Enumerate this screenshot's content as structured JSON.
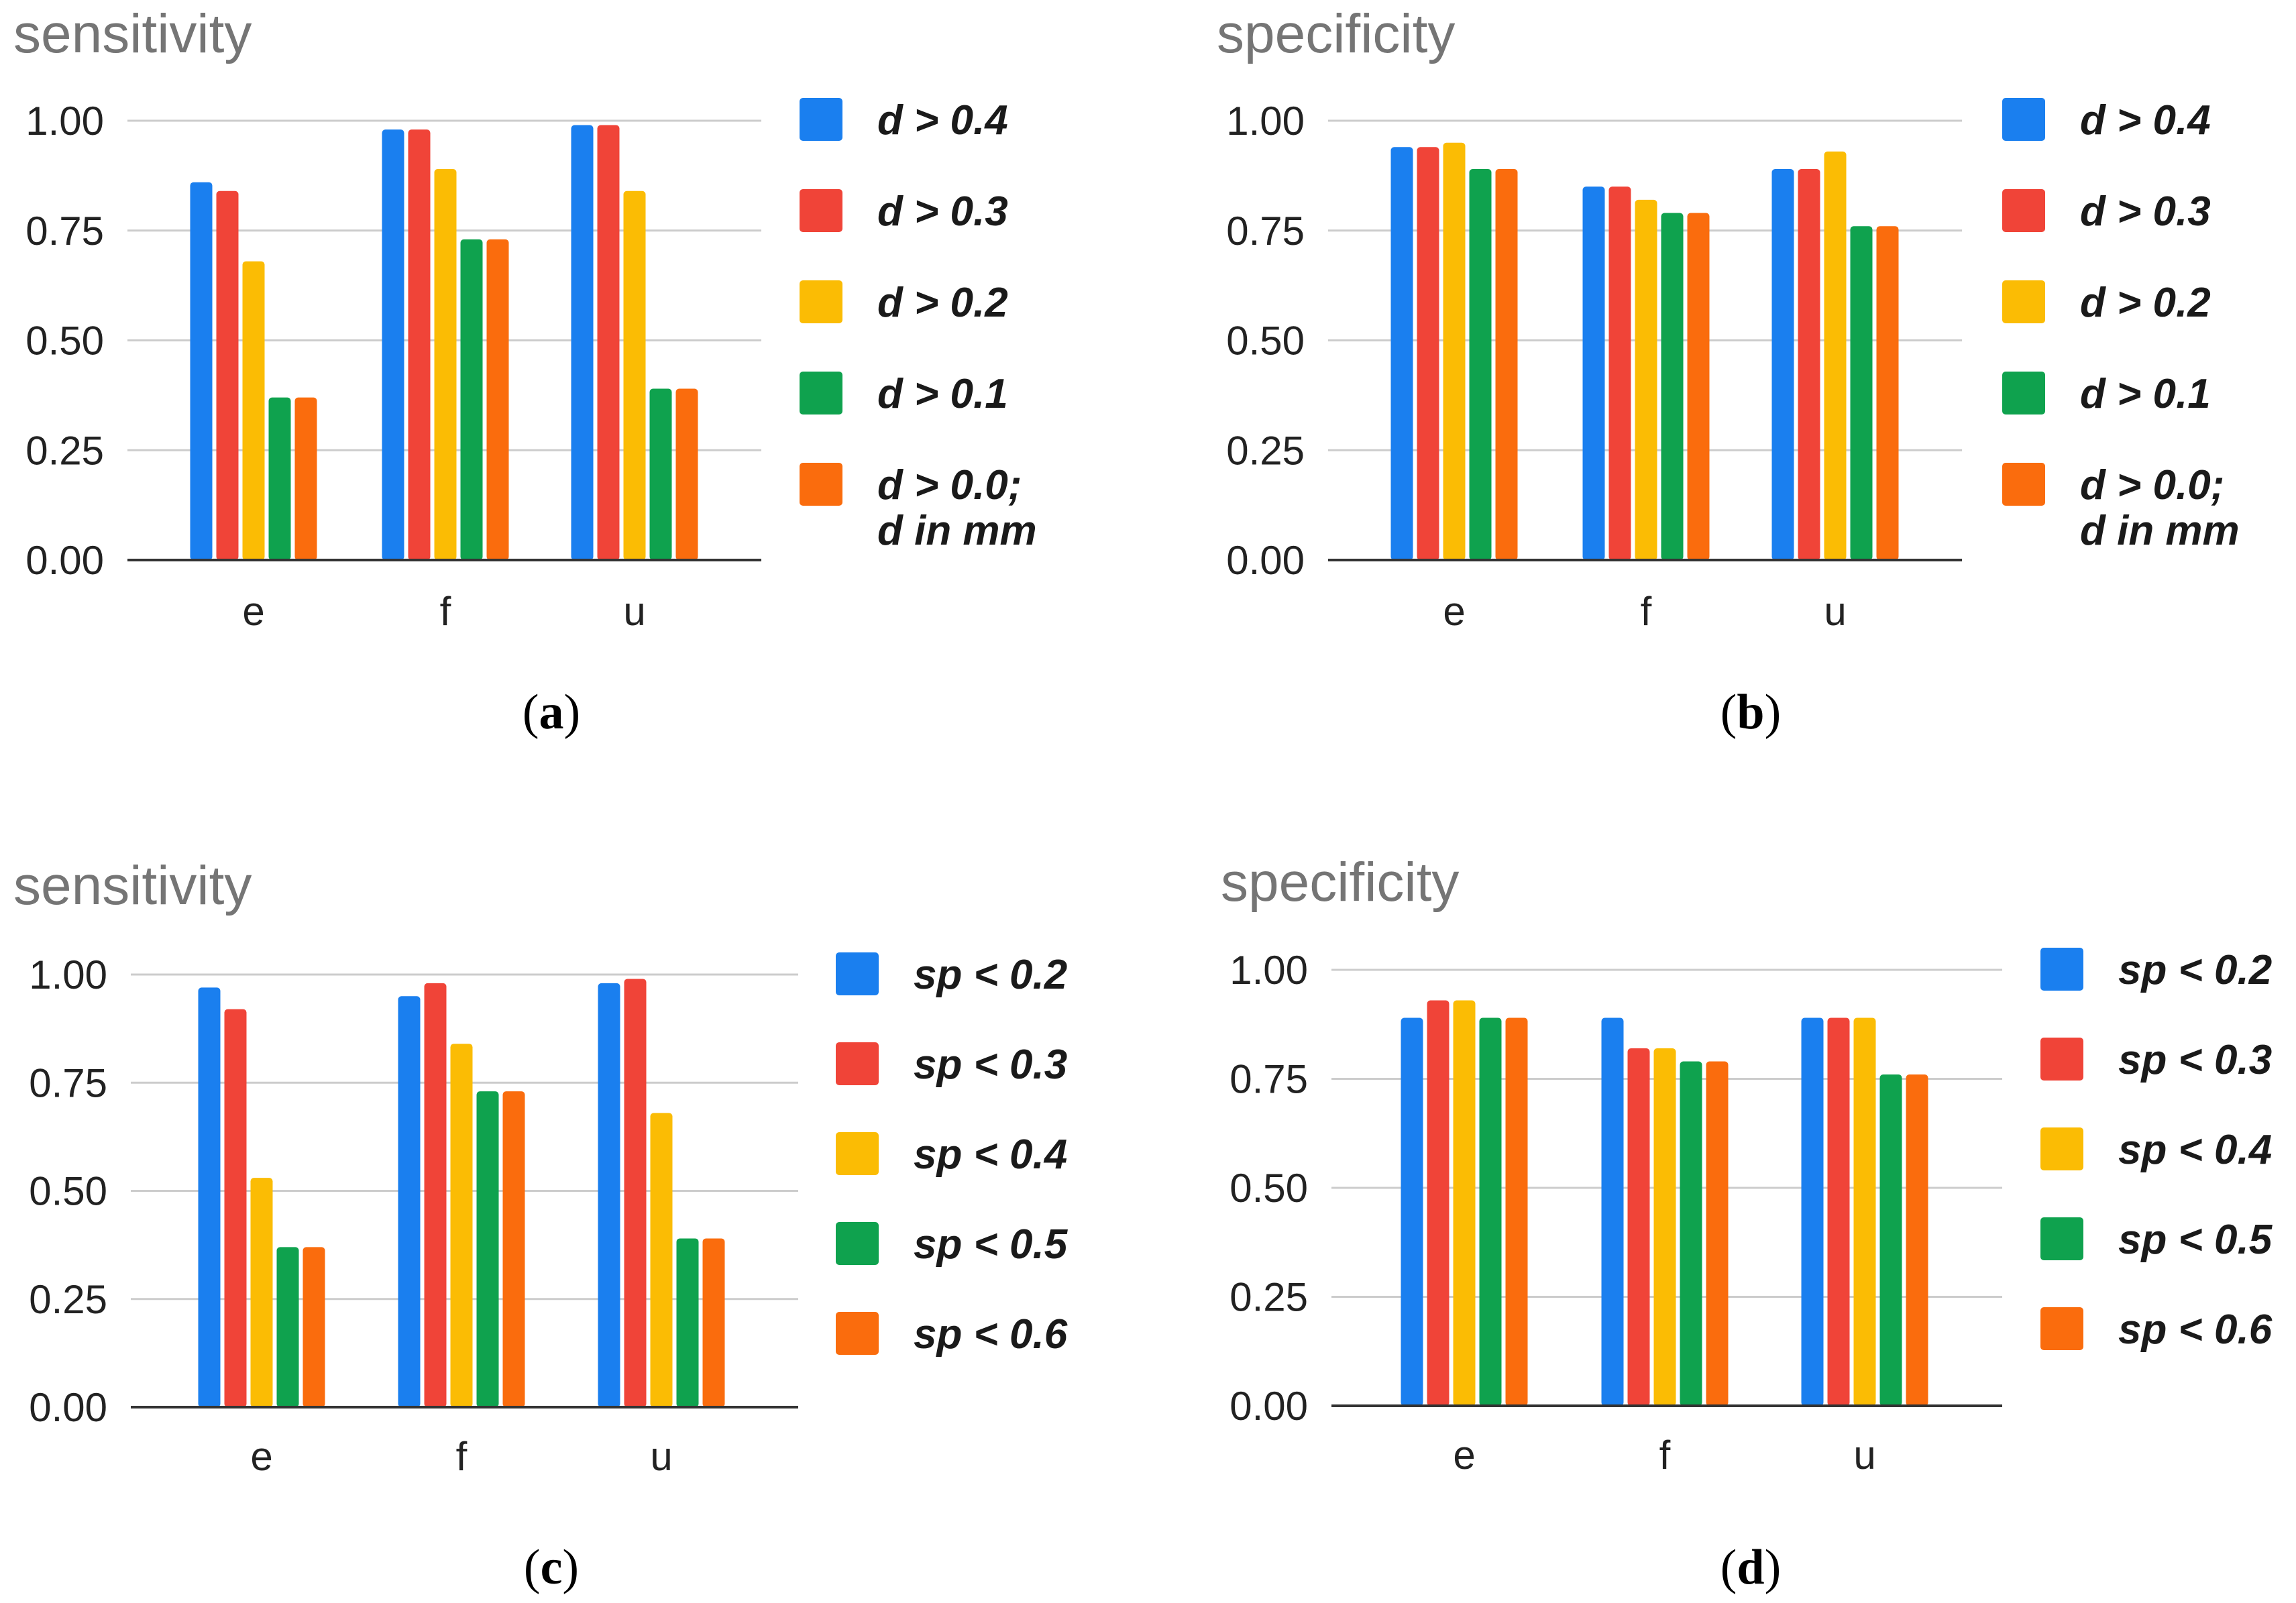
{
  "colors": [
    "#1a7fef",
    "#f04438",
    "#fbbc04",
    "#0fa24e",
    "#fa6c0d"
  ],
  "chart_data": [
    {
      "type": "bar",
      "id": "a",
      "title": "sensitivity",
      "caption": "a",
      "categories": [
        "e",
        "f",
        "u"
      ],
      "ylim": [
        0,
        1
      ],
      "yticks": [
        "0.00",
        "0.25",
        "0.50",
        "0.75",
        "1.00"
      ],
      "legend_position": "right",
      "series": [
        {
          "name": "d > 0.4",
          "values": [
            0.86,
            0.98,
            0.99
          ]
        },
        {
          "name": "d > 0.3",
          "values": [
            0.84,
            0.98,
            0.99
          ]
        },
        {
          "name": "d > 0.2",
          "values": [
            0.68,
            0.89,
            0.84
          ]
        },
        {
          "name": "d > 0.1",
          "values": [
            0.37,
            0.73,
            0.39
          ]
        },
        {
          "name": "d > 0.0;\nd in mm",
          "values": [
            0.37,
            0.73,
            0.39
          ]
        }
      ]
    },
    {
      "type": "bar",
      "id": "b",
      "title": "specificity",
      "caption": "b",
      "categories": [
        "e",
        "f",
        "u"
      ],
      "ylim": [
        0,
        1
      ],
      "yticks": [
        "0.00",
        "0.25",
        "0.50",
        "0.75",
        "1.00"
      ],
      "legend_position": "right",
      "series": [
        {
          "name": "d > 0.4",
          "values": [
            0.94,
            0.85,
            0.89
          ]
        },
        {
          "name": "d > 0.3",
          "values": [
            0.94,
            0.85,
            0.89
          ]
        },
        {
          "name": "d > 0.2",
          "values": [
            0.95,
            0.82,
            0.93
          ]
        },
        {
          "name": "d > 0.1",
          "values": [
            0.89,
            0.79,
            0.76
          ]
        },
        {
          "name": "d > 0.0;\nd in mm",
          "values": [
            0.89,
            0.79,
            0.76
          ]
        }
      ]
    },
    {
      "type": "bar",
      "id": "c",
      "title": "sensitivity",
      "caption": "c",
      "categories": [
        "e",
        "f",
        "u"
      ],
      "ylim": [
        0,
        1
      ],
      "yticks": [
        "0.00",
        "0.25",
        "0.50",
        "0.75",
        "1.00"
      ],
      "legend_position": "right",
      "series": [
        {
          "name": "sp < 0.2",
          "values": [
            0.97,
            0.95,
            0.98
          ]
        },
        {
          "name": "sp < 0.3",
          "values": [
            0.92,
            0.98,
            0.99
          ]
        },
        {
          "name": "sp < 0.4",
          "values": [
            0.53,
            0.84,
            0.68
          ]
        },
        {
          "name": "sp < 0.5",
          "values": [
            0.37,
            0.73,
            0.39
          ]
        },
        {
          "name": "sp < 0.6",
          "values": [
            0.37,
            0.73,
            0.39
          ]
        }
      ]
    },
    {
      "type": "bar",
      "id": "d",
      "title": "specificity",
      "caption": "d",
      "categories": [
        "e",
        "f",
        "u"
      ],
      "ylim": [
        0,
        1
      ],
      "yticks": [
        "0.00",
        "0.25",
        "0.50",
        "0.75",
        "1.00"
      ],
      "legend_position": "right",
      "series": [
        {
          "name": "sp < 0.2",
          "values": [
            0.89,
            0.89,
            0.89
          ]
        },
        {
          "name": "sp < 0.3",
          "values": [
            0.93,
            0.82,
            0.89
          ]
        },
        {
          "name": "sp < 0.4",
          "values": [
            0.93,
            0.82,
            0.89
          ]
        },
        {
          "name": "sp < 0.5",
          "values": [
            0.89,
            0.79,
            0.76
          ]
        },
        {
          "name": "sp < 0.6",
          "values": [
            0.89,
            0.79,
            0.76
          ]
        }
      ]
    }
  ]
}
